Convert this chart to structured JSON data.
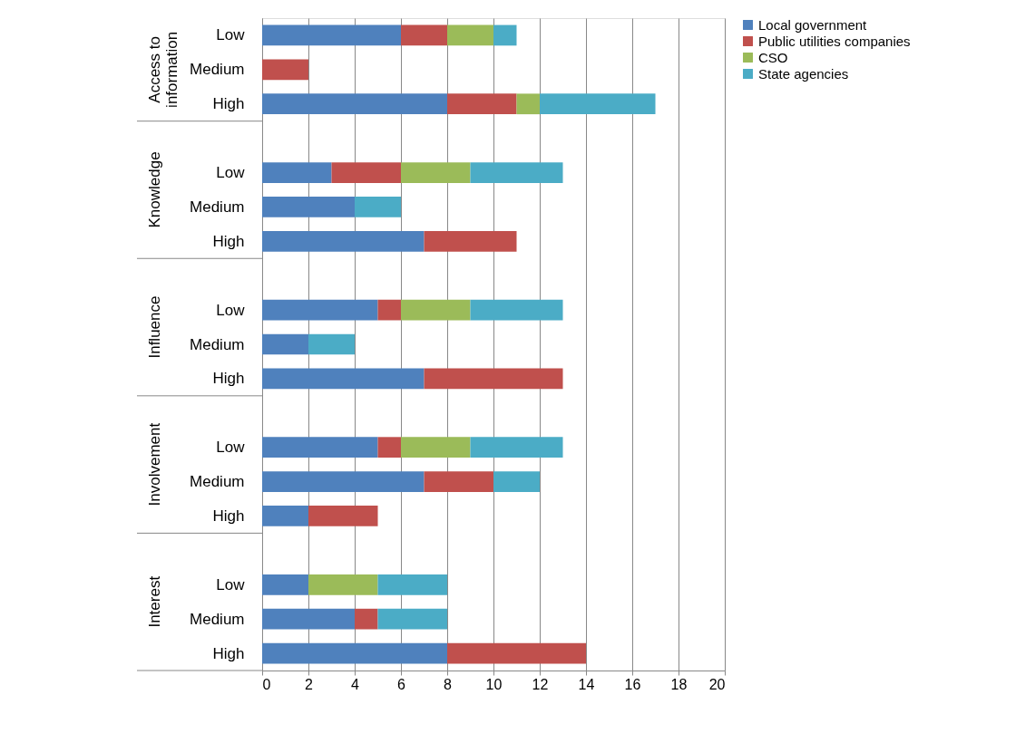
{
  "chart_data": {
    "type": "bar",
    "orientation": "horizontal",
    "stacked": true,
    "categories": [
      "Low",
      "Medium",
      "High",
      null,
      "Low",
      "Medium",
      "High",
      null,
      "Low",
      "Medium",
      "High",
      null,
      "Low",
      "Medium",
      "High",
      null,
      "Low",
      "Medium",
      "High"
    ],
    "annotations": [
      "Access to information",
      "Knowledge",
      "Influence",
      "Involvement",
      "Interest"
    ],
    "series": [
      {
        "name": "Local government",
        "color": "#4f81bd",
        "values": [
          6,
          0,
          8,
          null,
          3,
          4,
          7,
          null,
          5,
          2,
          7,
          null,
          5,
          7,
          2,
          null,
          2,
          4,
          8
        ]
      },
      {
        "name": "Public utilities companies",
        "color": "#c0504d",
        "values": [
          2,
          2,
          3,
          null,
          3,
          0,
          4,
          null,
          1,
          0,
          6,
          null,
          1,
          3,
          3,
          null,
          0,
          1,
          6
        ]
      },
      {
        "name": "CSO",
        "color": "#9bbb59",
        "values": [
          2,
          0,
          1,
          null,
          3,
          0,
          0,
          null,
          3,
          0,
          0,
          null,
          3,
          0,
          0,
          null,
          3,
          0,
          0
        ]
      },
      {
        "name": "State agencies",
        "color": "#4bacc6",
        "values": [
          1,
          0,
          5,
          null,
          4,
          2,
          0,
          null,
          4,
          2,
          0,
          null,
          4,
          2,
          0,
          null,
          3,
          3,
          0
        ]
      }
    ],
    "xlim": [
      0,
      20
    ],
    "xticks": [
      0,
      2,
      4,
      6,
      8,
      10,
      12,
      14,
      16,
      18,
      20
    ],
    "grid": "x",
    "legend": "right"
  }
}
